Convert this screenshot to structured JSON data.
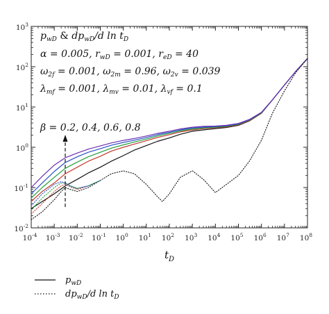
{
  "chart_data": {
    "type": "line",
    "title": "",
    "xlabel": "t_D",
    "ylabel": "",
    "x_scale": "log",
    "y_scale": "log",
    "xlim": [
      0.0001,
      100000000
    ],
    "ylim": [
      0.01,
      1000
    ],
    "x_tick_labels": [
      "10^-4",
      "10^-3",
      "10^-2",
      "10^-1",
      "10^0",
      "10^1",
      "10^2",
      "10^3",
      "10^4",
      "10^5",
      "10^6",
      "10^7",
      "10^8"
    ],
    "y_tick_labels": [
      "10^-2",
      "10^-1",
      "10^0",
      "10^1",
      "10^2",
      "10^3"
    ],
    "annotations": [
      "p_wD & dp_wD/d ln t_D",
      "α = 0.005, r_wD = 0.001, r_eD = 40",
      "ω_2f = 0.001, ω_2m = 0.96, ω_2v = 0.039",
      "λ_mf = 0.001, λ_mv = 0.01, λ_vf = 0.1",
      "β = 0.2, 0.4, 0.6, 0.8"
    ],
    "series": [
      {
        "color": "#111111",
        "style": "solid",
        "x": [
          0.0001,
          0.0003,
          0.001,
          0.003,
          0.01,
          0.03,
          0.1,
          0.3,
          1,
          3,
          10,
          30,
          100,
          300,
          1000,
          3000,
          10000,
          30000,
          100000,
          300000,
          1000000,
          3000000,
          10000000,
          30000000,
          100000000
        ],
        "y": [
          0.03,
          0.045,
          0.07,
          0.11,
          0.16,
          0.23,
          0.32,
          0.45,
          0.62,
          0.85,
          1.1,
          1.4,
          1.7,
          2.1,
          2.5,
          2.7,
          2.9,
          3.1,
          3.5,
          4.5,
          7,
          15,
          35,
          75,
          160
        ]
      },
      {
        "color": "#c0392b",
        "style": "solid",
        "x": [
          0.0001,
          0.0003,
          0.001,
          0.003,
          0.01,
          0.03,
          0.1,
          0.3,
          1,
          3,
          10,
          30,
          100,
          300,
          1000,
          3000,
          10000,
          30000,
          100000,
          300000,
          1000000,
          3000000,
          10000000,
          30000000,
          100000000
        ],
        "y": [
          0.045,
          0.08,
          0.13,
          0.22,
          0.32,
          0.45,
          0.6,
          0.8,
          1.0,
          1.2,
          1.45,
          1.75,
          2.05,
          2.4,
          2.7,
          2.9,
          3.05,
          3.2,
          3.6,
          4.6,
          7.1,
          15,
          35,
          75,
          160
        ]
      },
      {
        "color": "#1f9e3a",
        "style": "solid",
        "x": [
          0.0001,
          0.0003,
          0.001,
          0.003,
          0.01,
          0.03,
          0.1,
          0.3,
          1,
          3,
          10,
          30,
          100,
          300,
          1000,
          3000,
          10000,
          30000,
          100000,
          300000,
          1000000,
          3000000,
          10000000,
          30000000,
          100000000
        ],
        "y": [
          0.055,
          0.1,
          0.18,
          0.3,
          0.43,
          0.58,
          0.75,
          0.95,
          1.15,
          1.35,
          1.6,
          1.9,
          2.2,
          2.55,
          2.85,
          3.0,
          3.15,
          3.3,
          3.7,
          4.7,
          7.2,
          15,
          35,
          75,
          160
        ]
      },
      {
        "color": "#2b4fc7",
        "style": "solid",
        "x": [
          0.0001,
          0.0003,
          0.001,
          0.003,
          0.01,
          0.03,
          0.1,
          0.3,
          1,
          3,
          10,
          30,
          100,
          300,
          1000,
          3000,
          10000,
          30000,
          100000,
          300000,
          1000000,
          3000000,
          10000000,
          30000000,
          100000000
        ],
        "y": [
          0.07,
          0.13,
          0.25,
          0.42,
          0.58,
          0.75,
          0.92,
          1.12,
          1.32,
          1.5,
          1.75,
          2.05,
          2.35,
          2.7,
          3.0,
          3.15,
          3.25,
          3.4,
          3.8,
          4.8,
          7.3,
          15,
          35,
          75,
          160
        ]
      },
      {
        "color": "#6a2fb0",
        "style": "solid",
        "x": [
          0.0001,
          0.0003,
          0.001,
          0.003,
          0.01,
          0.03,
          0.1,
          0.3,
          1,
          3,
          10,
          30,
          100,
          300,
          1000,
          3000,
          10000,
          30000,
          100000,
          300000,
          1000000,
          3000000,
          10000000,
          30000000,
          100000000
        ],
        "y": [
          0.1,
          0.19,
          0.36,
          0.55,
          0.72,
          0.9,
          1.08,
          1.28,
          1.48,
          1.65,
          1.9,
          2.2,
          2.5,
          2.85,
          3.15,
          3.3,
          3.35,
          3.5,
          3.9,
          4.9,
          7.4,
          15,
          35,
          75,
          160
        ]
      },
      {
        "color": "#111111",
        "style": "dotted",
        "x": [
          0.0001,
          0.0003,
          0.001,
          0.002,
          0.003,
          0.005,
          0.01,
          0.03,
          0.1,
          0.3,
          1,
          3,
          10,
          30,
          50,
          100,
          300,
          1000,
          3000,
          10000,
          30000,
          100000,
          300000,
          1000000,
          3000000,
          10000000,
          30000000,
          100000000
        ],
        "y": [
          0.016,
          0.025,
          0.05,
          0.08,
          0.1,
          0.09,
          0.08,
          0.1,
          0.15,
          0.22,
          0.26,
          0.22,
          0.12,
          0.06,
          0.045,
          0.07,
          0.18,
          0.26,
          0.16,
          0.075,
          0.12,
          0.2,
          0.45,
          1.5,
          7,
          25,
          70,
          160
        ]
      },
      {
        "color": "#c0392b",
        "style": "dotted",
        "x": [
          0.0001,
          0.0003,
          0.001,
          0.002,
          0.003,
          0.005,
          0.01,
          0.03,
          0.1
        ],
        "y": [
          0.022,
          0.04,
          0.08,
          0.11,
          0.12,
          0.105,
          0.09,
          0.11,
          0.15
        ]
      },
      {
        "color": "#1f9e3a",
        "style": "dotted",
        "x": [
          0.0001,
          0.0003,
          0.001,
          0.002,
          0.003,
          0.005,
          0.01,
          0.03,
          0.1
        ],
        "y": [
          0.028,
          0.055,
          0.1,
          0.13,
          0.13,
          0.11,
          0.095,
          0.11,
          0.15
        ]
      },
      {
        "color": "#2b4fc7",
        "style": "dotted",
        "x": [
          0.0001,
          0.0003,
          0.001,
          0.002,
          0.003,
          0.005,
          0.01,
          0.03,
          0.1
        ],
        "y": [
          0.035,
          0.07,
          0.12,
          0.14,
          0.13,
          0.11,
          0.095,
          0.11,
          0.15
        ]
      }
    ],
    "legend": {
      "position": "below",
      "entries": [
        {
          "label": "p_wD",
          "style": "solid"
        },
        {
          "label": "dp_wD/d ln t_D",
          "style": "dotted"
        }
      ]
    }
  }
}
